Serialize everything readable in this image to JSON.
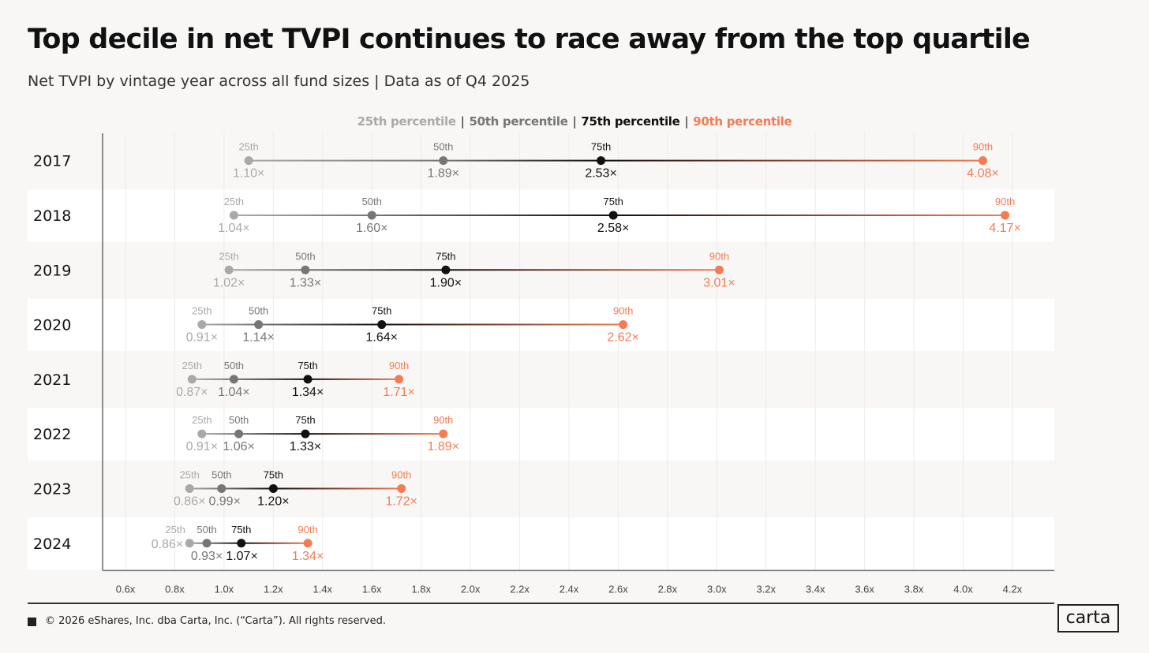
{
  "title": "Top decile in net TVPI continues to race away from the top quartile",
  "subtitle": "Net TVPI by vintage year across all fund sizes | Data as of Q4 2025",
  "footer": "© 2026 eShares, Inc. dba Carta, Inc. (“Carta”). All rights reserved.",
  "logo": "carta",
  "colors": {
    "p25": "#a9a9a9",
    "p50": "#767676",
    "p75": "#111111",
    "p90": "#f47b54",
    "band": "#ffffff",
    "background": "#f8f7f5"
  },
  "chart_data": {
    "type": "dumbbell",
    "title": "Top decile in net TVPI continues to race away from the top quartile",
    "xlim": [
      0.507,
      4.37
    ],
    "xticks": [
      0.6,
      0.8,
      1.0,
      1.2,
      1.4,
      1.6,
      1.8,
      2.0,
      2.2,
      2.4,
      2.6,
      2.8,
      3.0,
      3.2,
      3.4,
      3.6,
      3.8,
      4.0,
      4.2
    ],
    "xtick_suffix": "x",
    "legend": [
      "25th percentile",
      "50th percentile",
      "75th percentile",
      "90th percentile"
    ],
    "legend_placement": "top-center",
    "point_labels": [
      "25th",
      "50th",
      "75th",
      "90th"
    ],
    "categories": [
      "2017",
      "2018",
      "2019",
      "2020",
      "2021",
      "2022",
      "2023",
      "2024"
    ],
    "series": [
      {
        "name": "25th percentile",
        "values": [
          1.1,
          1.04,
          1.02,
          0.91,
          0.87,
          0.91,
          0.86,
          0.86
        ]
      },
      {
        "name": "50th percentile",
        "values": [
          1.89,
          1.6,
          1.33,
          1.14,
          1.04,
          1.06,
          0.99,
          0.93
        ]
      },
      {
        "name": "75th percentile",
        "values": [
          2.53,
          2.58,
          1.9,
          1.64,
          1.34,
          1.33,
          1.2,
          1.07
        ]
      },
      {
        "name": "90th percentile",
        "values": [
          4.08,
          4.17,
          3.01,
          2.62,
          1.71,
          1.89,
          1.72,
          1.34
        ]
      }
    ],
    "value_labels": [
      [
        "1.10×",
        "1.89×",
        "2.53×",
        "4.08×"
      ],
      [
        "1.04×",
        "1.60×",
        "2.58×",
        "4.17×"
      ],
      [
        "1.02×",
        "1.33×",
        "1.90×",
        "3.01×"
      ],
      [
        "0.91×",
        "1.14×",
        "1.64×",
        "2.62×"
      ],
      [
        "0.87×",
        "1.04×",
        "1.34×",
        "1.71×"
      ],
      [
        "0.91×",
        "1.06×",
        "1.33×",
        "1.89×"
      ],
      [
        "0.86×",
        "0.99×",
        "1.20×",
        "1.72×"
      ],
      [
        "0.86×",
        "0.93×",
        "1.07×",
        "1.34×"
      ]
    ]
  }
}
